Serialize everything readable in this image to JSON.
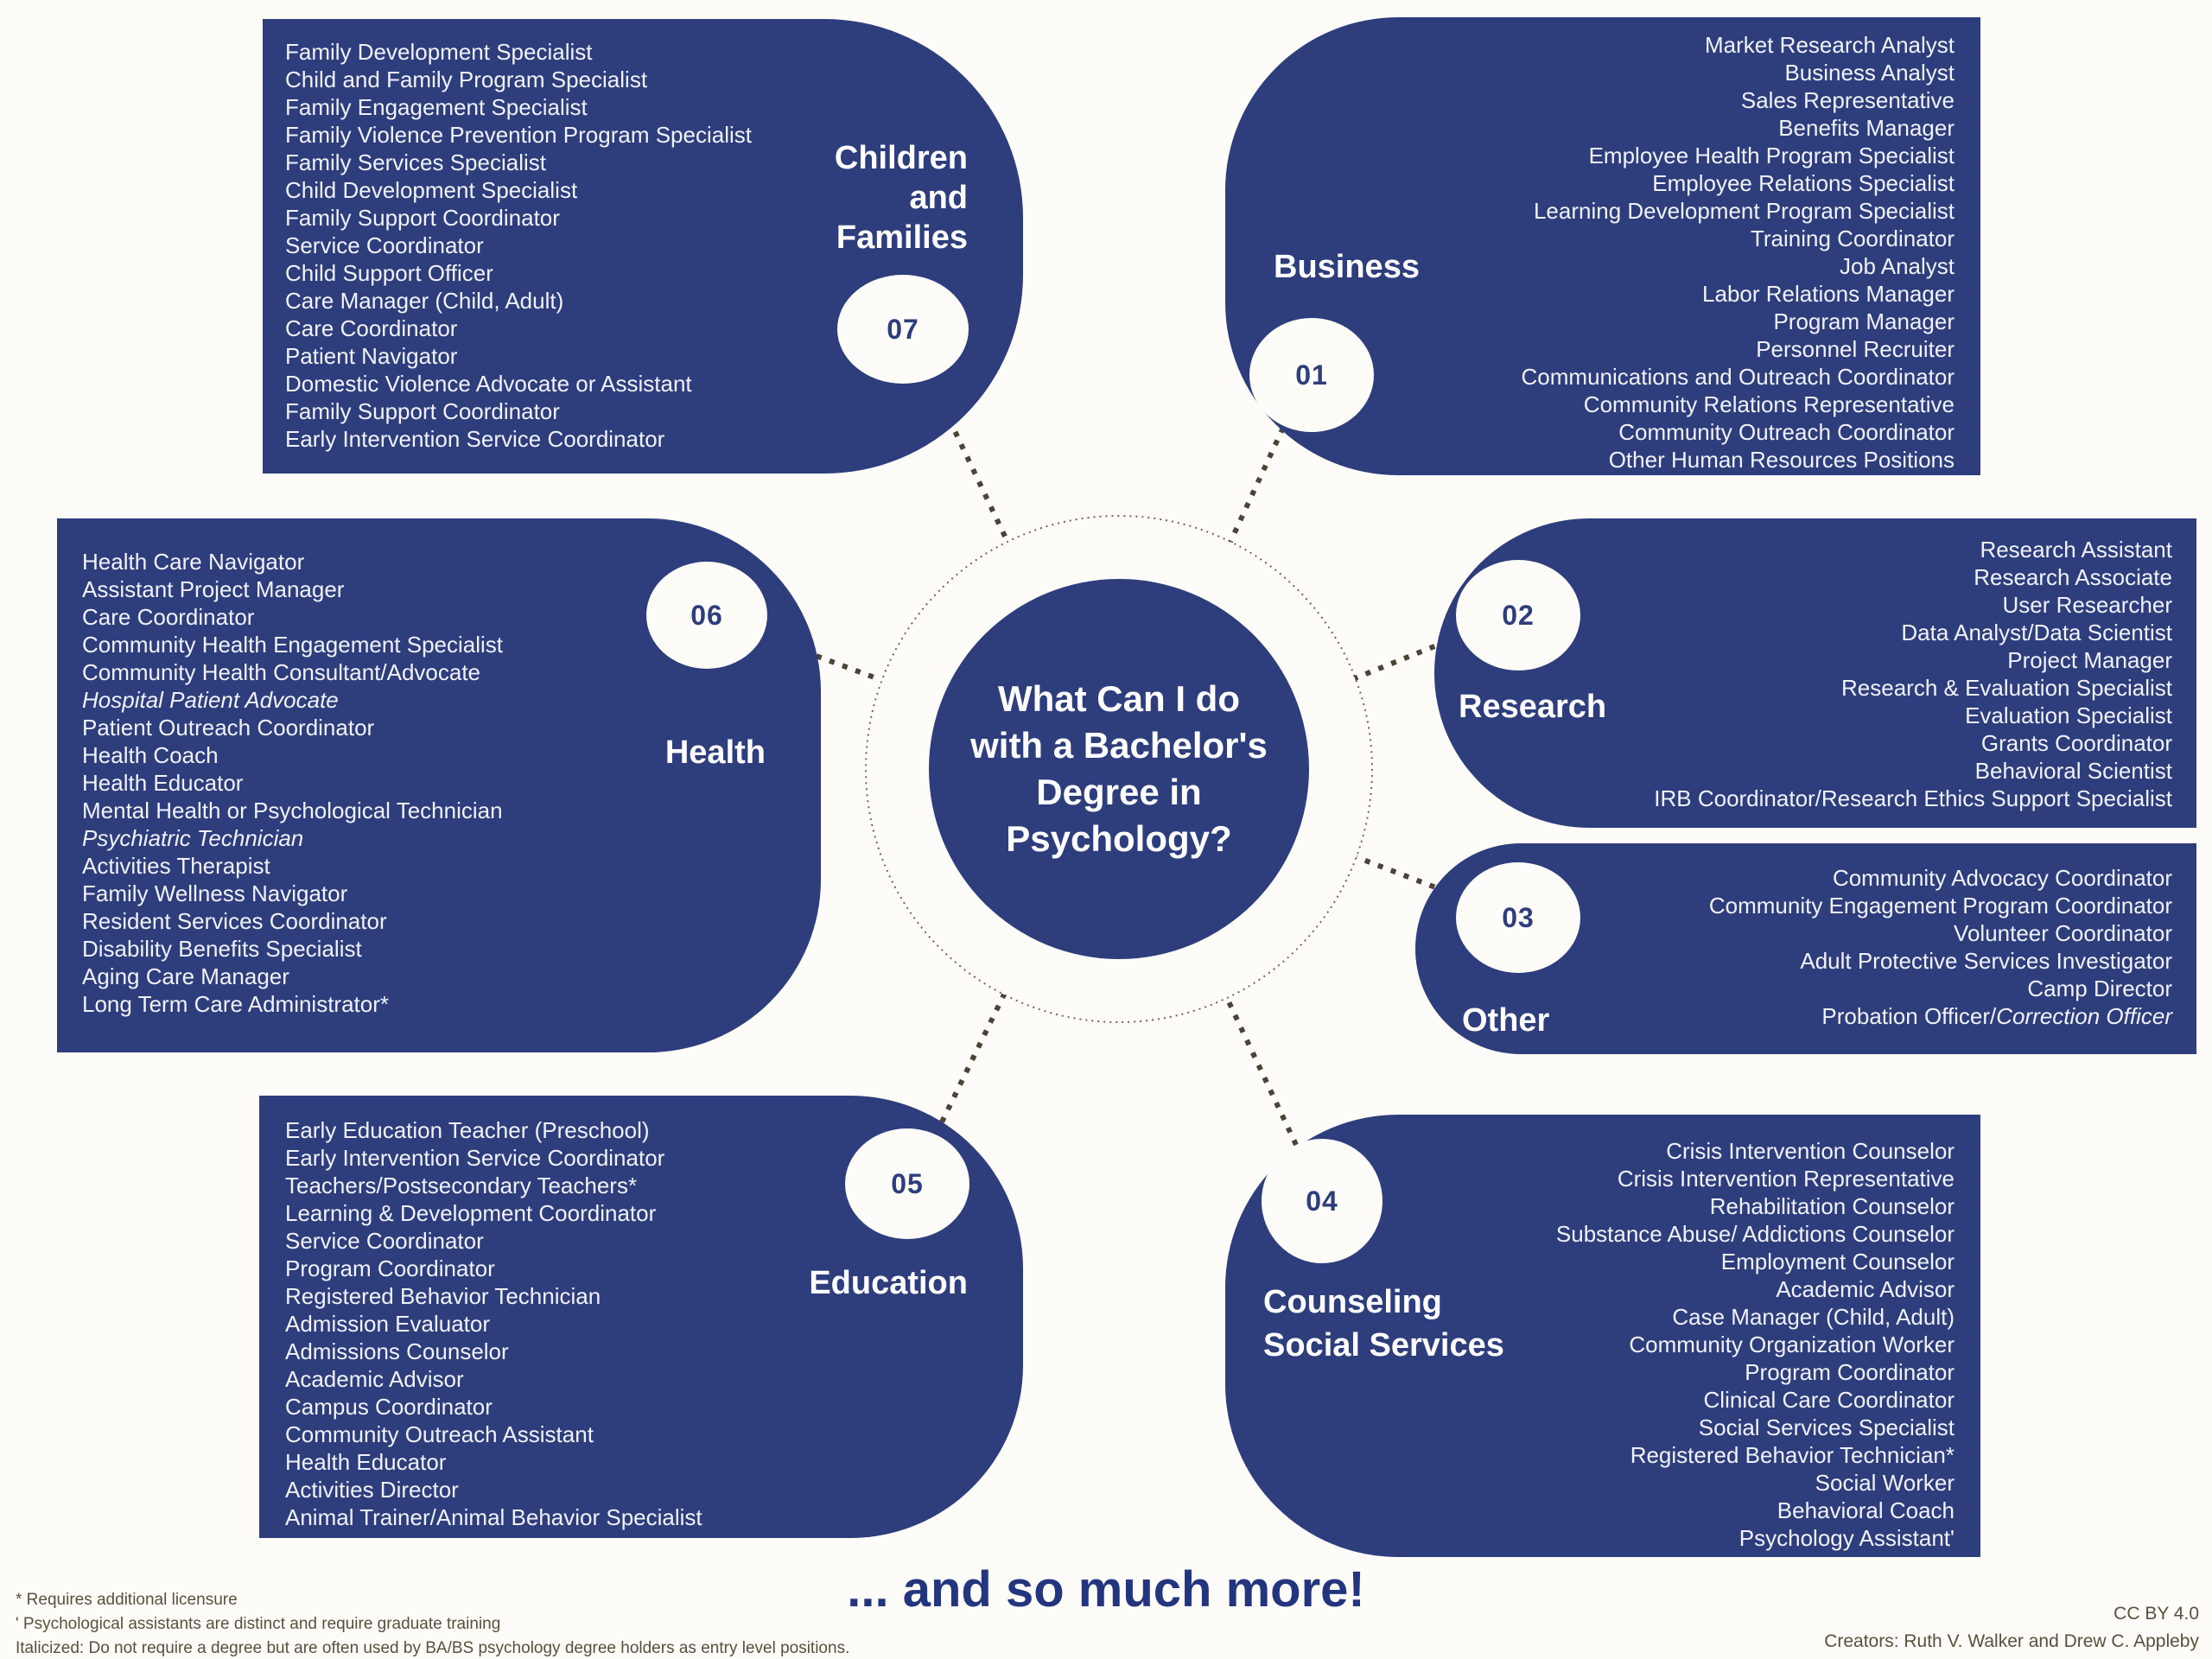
{
  "center": {
    "title_lines": [
      "What Can I do",
      "with a Bachelor's",
      "Degree in",
      "Psychology?"
    ]
  },
  "panels": [
    {
      "key": "business",
      "number": "01",
      "label_lines": [
        "Business"
      ],
      "jobs": [
        "Market Research Analyst",
        "Business Analyst",
        "Sales Representative",
        "Benefits Manager",
        "Employee Health Program Specialist",
        "Employee Relations Specialist",
        "Learning Development Program Specialist",
        "Training Coordinator",
        "Job Analyst",
        "Labor Relations Manager",
        "Program Manager",
        "Personnel Recruiter",
        "Communications and Outreach Coordinator",
        "Community Relations Representative",
        "Community Outreach Coordinator",
        "Other Human Resources Positions"
      ]
    },
    {
      "key": "research",
      "number": "02",
      "label_lines": [
        "Research"
      ],
      "jobs": [
        "Research Assistant",
        "Research Associate",
        "User Researcher",
        "Data Analyst/Data Scientist",
        "Project Manager",
        "Research & Evaluation Specialist",
        "Evaluation Specialist",
        "Grants Coordinator",
        "Behavioral Scientist",
        "IRB Coordinator/Research Ethics Support Specialist"
      ]
    },
    {
      "key": "other",
      "number": "03",
      "label_lines": [
        "Other"
      ],
      "jobs": [
        "Community Advocacy Coordinator",
        "Community Engagement Program Coordinator",
        "Volunteer Coordinator",
        "Adult Protective Services Investigator",
        "Camp Director",
        {
          "parts": [
            {
              "text": "Probation Officer/"
            },
            {
              "text": "Correction Officer",
              "italic": true
            }
          ]
        }
      ]
    },
    {
      "key": "counseling",
      "number": "04",
      "label_lines": [
        "Counseling",
        "Social Services"
      ],
      "jobs": [
        "Crisis Intervention Counselor",
        "Crisis Intervention Representative",
        "Rehabilitation Counselor",
        "Substance Abuse/ Addictions Counselor",
        "Employment Counselor",
        "Academic Advisor",
        "Case Manager (Child, Adult)",
        "Community Organization Worker",
        "Program Coordinator",
        "Clinical Care Coordinator",
        "Social Services Specialist",
        "Registered Behavior Technician*",
        "Social Worker",
        "Behavioral Coach",
        "Psychology Assistant'"
      ]
    },
    {
      "key": "education",
      "number": "05",
      "label_lines": [
        "Education"
      ],
      "jobs": [
        "Early Education Teacher (Preschool)",
        "Early Intervention Service Coordinator",
        "Teachers/Postsecondary Teachers*",
        "Learning & Development Coordinator",
        "Service Coordinator",
        "Program Coordinator",
        "Registered Behavior Technician",
        "Admission Evaluator",
        "Admissions Counselor",
        "Academic Advisor",
        "Campus Coordinator",
        "Community Outreach Assistant",
        "Health Educator",
        "Activities Director",
        "Animal Trainer/Animal Behavior Specialist"
      ]
    },
    {
      "key": "health",
      "number": "06",
      "label_lines": [
        "Health"
      ],
      "jobs": [
        "Health Care Navigator",
        "Assistant Project Manager",
        "Care Coordinator",
        "Community Health Engagement Specialist",
        "Community Health Consultant/Advocate",
        {
          "text": "Hospital Patient Advocate",
          "italic": true
        },
        "Patient Outreach Coordinator",
        "Health Coach",
        "Health Educator",
        "Mental Health or Psychological Technician",
        {
          "text": "Psychiatric Technician",
          "italic": true
        },
        "Activities Therapist",
        "Family Wellness Navigator",
        "Resident Services Coordinator",
        "Disability Benefits Specialist",
        "Aging Care Manager",
        "Long Term Care Administrator*"
      ]
    },
    {
      "key": "children",
      "number": "07",
      "label_lines": [
        "Children",
        "and",
        "Families"
      ],
      "jobs": [
        "Family Development Specialist",
        "Child and Family Program Specialist",
        "Family Engagement Specialist",
        "Family Violence Prevention Program Specialist",
        "Family Services Specialist",
        "Child Development Specialist",
        "Family Support Coordinator",
        "Service Coordinator",
        "Child Support Officer",
        "Care Manager (Child, Adult)",
        "Care Coordinator",
        "Patient Navigator",
        "Domestic Violence Advocate or Assistant",
        "Family Support Coordinator",
        "Early Intervention Service Coordinator"
      ]
    }
  ],
  "footer": {
    "more": "... and so much more!",
    "notes": [
      "* Requires additional licensure",
      "' Psychological assistants are distinct and require graduate training",
      "Italicized: Do not require a degree but are often used by BA/BS psychology degree holders as entry level positions."
    ],
    "license": "CC BY 4.0",
    "credits": "Creators: Ruth V. Walker and Drew C. Appleby"
  },
  "colors": {
    "panel_blue": "#2e3d7c",
    "text_light": "#f1f2f7",
    "number_blue": "#2e3d7c",
    "background": "#fdfcf8",
    "accent_blue": "#24357f",
    "note_gray": "#57503e",
    "connector": "#4b4336",
    "ring": "#6f6552"
  }
}
